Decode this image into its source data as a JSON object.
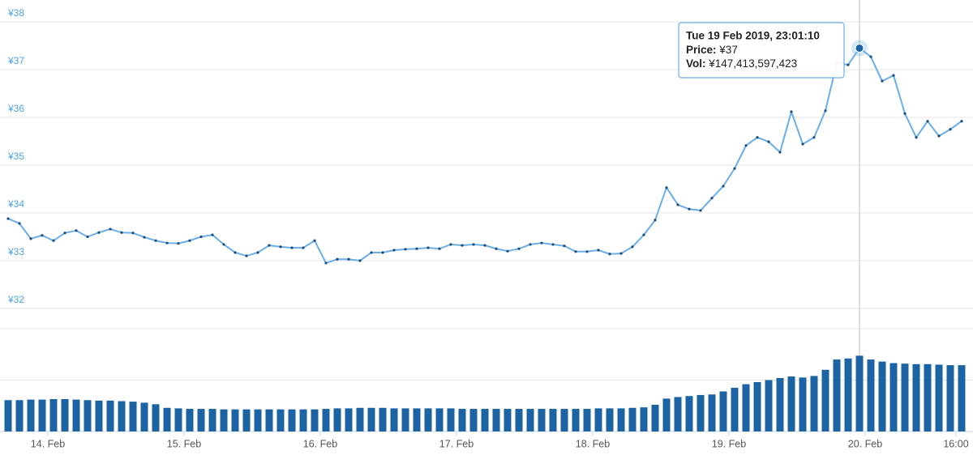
{
  "chart_data": [
    {
      "type": "line",
      "color": "#6aaee8",
      "marker_color": "#1f4e79",
      "grid": true,
      "x": [
        "2019-02-13 17:00",
        "2019-02-13 19:00",
        "2019-02-13 21:00",
        "2019-02-13 23:00",
        "2019-02-14 01:00",
        "2019-02-14 03:00",
        "2019-02-14 05:00",
        "2019-02-14 07:00",
        "2019-02-14 09:00",
        "2019-02-14 11:00",
        "2019-02-14 13:00",
        "2019-02-14 15:00",
        "2019-02-14 17:00",
        "2019-02-14 19:00",
        "2019-02-14 21:00",
        "2019-02-14 23:00",
        "2019-02-15 01:00",
        "2019-02-15 03:00",
        "2019-02-15 05:00",
        "2019-02-15 07:00",
        "2019-02-15 09:00",
        "2019-02-15 11:00",
        "2019-02-15 13:00",
        "2019-02-15 15:00",
        "2019-02-15 17:00",
        "2019-02-15 19:00",
        "2019-02-15 21:00",
        "2019-02-15 23:00",
        "2019-02-16 01:00",
        "2019-02-16 03:00",
        "2019-02-16 05:00",
        "2019-02-16 07:00",
        "2019-02-16 09:00",
        "2019-02-16 11:00",
        "2019-02-16 13:00",
        "2019-02-16 15:00",
        "2019-02-16 17:00",
        "2019-02-16 19:00",
        "2019-02-16 21:00",
        "2019-02-16 23:00",
        "2019-02-17 01:00",
        "2019-02-17 03:00",
        "2019-02-17 05:00",
        "2019-02-17 07:00",
        "2019-02-17 09:00",
        "2019-02-17 11:00",
        "2019-02-17 13:00",
        "2019-02-17 15:00",
        "2019-02-17 17:00",
        "2019-02-17 19:00",
        "2019-02-17 21:00",
        "2019-02-17 23:00",
        "2019-02-18 01:00",
        "2019-02-18 03:00",
        "2019-02-18 05:00",
        "2019-02-18 07:00",
        "2019-02-18 09:00",
        "2019-02-18 11:00",
        "2019-02-18 13:00",
        "2019-02-18 15:00",
        "2019-02-18 17:00",
        "2019-02-18 19:00",
        "2019-02-18 21:00",
        "2019-02-18 23:00",
        "2019-02-19 01:00",
        "2019-02-19 03:00",
        "2019-02-19 05:00",
        "2019-02-19 07:00",
        "2019-02-19 09:00",
        "2019-02-19 11:00",
        "2019-02-19 13:00",
        "2019-02-19 15:00",
        "2019-02-19 17:00",
        "2019-02-19 19:00",
        "2019-02-19 21:00",
        "2019-02-19 23:00",
        "2019-02-20 01:00",
        "2019-02-20 03:00",
        "2019-02-20 05:00",
        "2019-02-20 07:00",
        "2019-02-20 09:00",
        "2019-02-20 11:00",
        "2019-02-20 13:00",
        "2019-02-20 15:00",
        "2019-02-20 17:00"
      ],
      "values": [
        33.88,
        33.78,
        33.46,
        33.53,
        33.42,
        33.58,
        33.63,
        33.5,
        33.59,
        33.66,
        33.59,
        33.58,
        33.49,
        33.42,
        33.37,
        33.36,
        33.42,
        33.5,
        33.54,
        33.34,
        33.17,
        33.1,
        33.17,
        33.32,
        33.29,
        33.27,
        33.27,
        33.42,
        32.95,
        33.03,
        33.03,
        33.0,
        33.17,
        33.17,
        33.22,
        33.24,
        33.25,
        33.27,
        33.25,
        33.34,
        33.32,
        33.34,
        33.32,
        33.25,
        33.2,
        33.25,
        33.34,
        33.37,
        33.34,
        33.31,
        33.19,
        33.19,
        33.22,
        33.14,
        33.15,
        33.29,
        33.54,
        33.85,
        34.53,
        34.17,
        34.08,
        34.05,
        34.31,
        34.56,
        34.93,
        35.41,
        35.58,
        35.49,
        35.27,
        36.12,
        35.44,
        35.58,
        36.14,
        37.14,
        37.1,
        37.45,
        37.27,
        36.76,
        36.88,
        36.08,
        35.58,
        35.92,
        35.61,
        35.75,
        35.92
      ],
      "xlim": [
        "2019-02-13 17:00",
        "2019-02-20 17:00"
      ],
      "xticks": [
        {
          "value": "2019-02-14 00:00",
          "label": "14. Feb"
        },
        {
          "value": "2019-02-15 00:00",
          "label": "15. Feb"
        },
        {
          "value": "2019-02-16 00:00",
          "label": "16. Feb"
        },
        {
          "value": "2019-02-17 00:00",
          "label": "17. Feb"
        },
        {
          "value": "2019-02-18 00:00",
          "label": "18. Feb"
        },
        {
          "value": "2019-02-19 00:00",
          "label": "19. Feb"
        },
        {
          "value": "2019-02-20 00:00",
          "label": "20. Feb"
        },
        {
          "value": "2019-02-20 16:00",
          "label": "16:00"
        }
      ],
      "ylim": [
        32,
        38
      ],
      "yticks": [
        {
          "value": 32,
          "label": "¥32"
        },
        {
          "value": 33,
          "label": "¥33"
        },
        {
          "value": 34,
          "label": "¥34"
        },
        {
          "value": 35,
          "label": "¥35"
        },
        {
          "value": 36,
          "label": "¥36"
        },
        {
          "value": 37,
          "label": "¥37"
        },
        {
          "value": 38,
          "label": "¥38"
        }
      ],
      "tooltip": {
        "date": "Tue 19 Feb 2019, 23:01:10",
        "price_label": "Price:",
        "price": "¥37",
        "vol_label": "Vol:",
        "vol": "¥147,413,597,423"
      }
    },
    {
      "type": "bar",
      "color": "#1c63a3",
      "grid": true,
      "values": [
        61000000000.0,
        61000000000.0,
        62000000000.0,
        62000000000.0,
        63000000000.0,
        63000000000.0,
        62000000000.0,
        61000000000.0,
        60000000000.0,
        60000000000.0,
        59000000000.0,
        58000000000.0,
        56000000000.0,
        53000000000.0,
        46000000000.0,
        45000000000.0,
        44000000000.0,
        44000000000.0,
        44000000000.0,
        43000000000.0,
        43000000000.0,
        43000000000.0,
        43000000000.0,
        43000000000.0,
        43000000000.0,
        43000000000.0,
        43000000000.0,
        43000000000.0,
        44000000000.0,
        45000000000.0,
        45000000000.0,
        46000000000.0,
        46000000000.0,
        46000000000.0,
        45000000000.0,
        45000000000.0,
        45000000000.0,
        45000000000.0,
        45000000000.0,
        45000000000.0,
        44000000000.0,
        44000000000.0,
        44000000000.0,
        44000000000.0,
        44000000000.0,
        44000000000.0,
        44000000000.0,
        44000000000.0,
        44000000000.0,
        44000000000.0,
        44000000000.0,
        44000000000.0,
        45000000000.0,
        45000000000.0,
        45000000000.0,
        46000000000.0,
        47000000000.0,
        52000000000.0,
        64000000000.0,
        67000000000.0,
        69000000000.0,
        71000000000.0,
        72000000000.0,
        78000000000.0,
        85000000000.0,
        92000000000.0,
        96000000000.0,
        100000000000.0,
        104000000000.0,
        107000000000.0,
        105000000000.0,
        108000000000.0,
        120000000000.0,
        140000000000.0,
        142000000000.0,
        147413597423,
        140000000000.0,
        136000000000.0,
        133000000000.0,
        132000000000.0,
        131000000000.0,
        131000000000.0,
        130000000000.0,
        129000000000.0,
        129000000000.0
      ],
      "ylim": [
        0,
        200000000000
      ],
      "yticks": [
        0,
        100000000000,
        200000000000
      ]
    }
  ]
}
